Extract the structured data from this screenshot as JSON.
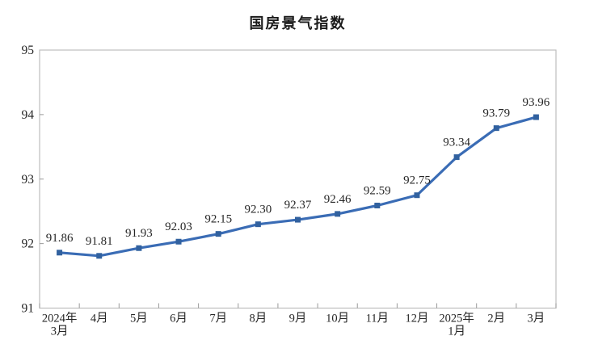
{
  "window": {
    "background_color": "#ffffff"
  },
  "chart_data": {
    "type": "line",
    "title": "国房景气指数",
    "categories": [
      "2024年\n3月",
      "4月",
      "5月",
      "6月",
      "7月",
      "8月",
      "9月",
      "10月",
      "11月",
      "12月",
      "2025年\n1月",
      "2月",
      "3月"
    ],
    "values": [
      91.86,
      91.81,
      91.93,
      92.03,
      92.15,
      92.3,
      92.37,
      92.46,
      92.59,
      92.75,
      93.34,
      93.79,
      93.96
    ],
    "data_labels": [
      "91.86",
      "91.81",
      "91.93",
      "92.03",
      "92.15",
      "92.30",
      "92.37",
      "92.46",
      "92.59",
      "92.75",
      "93.34",
      "93.79",
      "93.96"
    ],
    "series_name": "国房景气指数",
    "xlabel": "",
    "ylabel": "",
    "ylim": [
      91,
      95
    ],
    "y_ticks": [
      "91",
      "92",
      "93",
      "94",
      "95"
    ],
    "grid": false,
    "legend_position": "none",
    "line_color": "#3a6cb5",
    "marker_color": "#31619f",
    "axis_frame_color": "#bfbfbf",
    "tick_color": "#9a9a9a",
    "text_color": "#262626"
  }
}
